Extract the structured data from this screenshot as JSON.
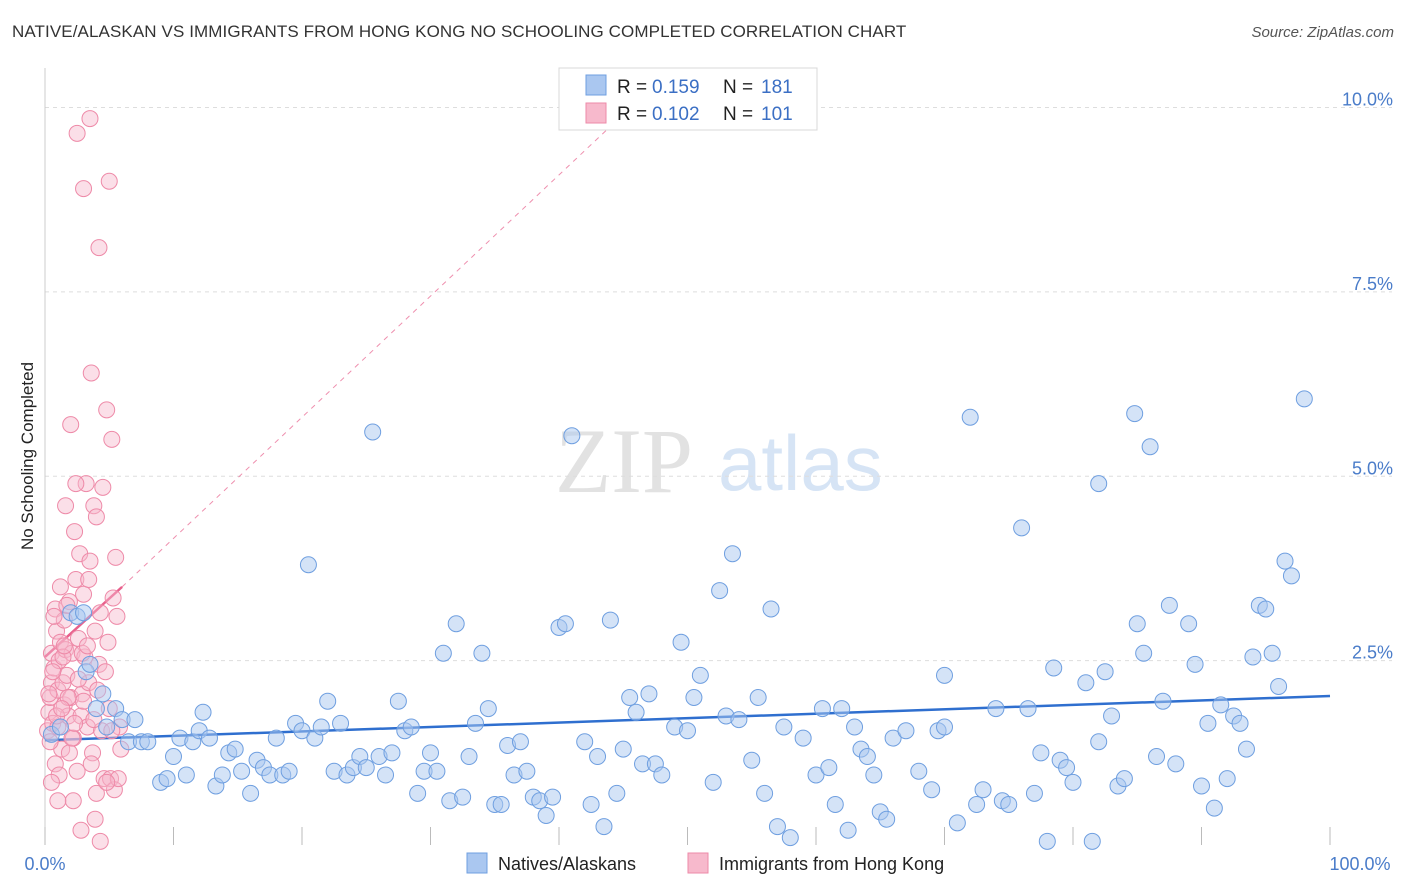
{
  "header": {
    "title": "NATIVE/ALASKAN VS IMMIGRANTS FROM HONG KONG NO SCHOOLING COMPLETED CORRELATION CHART",
    "source": "Source: ZipAtlas.com"
  },
  "watermark": {
    "zip": "ZIP",
    "atlas": "atlas"
  },
  "legend": {
    "rows": [
      {
        "r_label": "R = ",
        "r_value": "0.159",
        "n_label": "N = ",
        "n_value": "181"
      },
      {
        "r_label": "R = ",
        "r_value": "0.102",
        "n_label": "N = ",
        "n_value": "101"
      }
    ]
  },
  "colors": {
    "blue_fill": "#aac7f0",
    "blue_stroke": "#6f9fe0",
    "blue_line": "#2f6fcf",
    "pink_fill": "#f7b9cc",
    "pink_stroke": "#ee8aa8",
    "pink_line": "#e8608c",
    "grid": "#dddddd",
    "tick_text": "#4a7cc9"
  },
  "chart_data": {
    "type": "scatter",
    "title": "NATIVE/ALASKAN VS IMMIGRANTS FROM HONG KONG NO SCHOOLING COMPLETED CORRELATION CHART",
    "xlabel": "",
    "ylabel": "No Schooling Completed",
    "xlim": [
      0,
      100
    ],
    "ylim": [
      0,
      10.4
    ],
    "x_tick_labels": [
      "0.0%",
      "100.0%"
    ],
    "y_ticks": [
      2.5,
      5.0,
      7.5,
      10.0
    ],
    "y_tick_labels": [
      "2.5%",
      "5.0%",
      "7.5%",
      "10.0%"
    ],
    "grid": true,
    "legend_position": "top-center",
    "series": [
      {
        "name": "Natives/Alaskans",
        "color": "blue",
        "r": 0.159,
        "n": 181,
        "trend": {
          "x0": 0,
          "y0": 1.42,
          "x1": 100,
          "y1": 2.02,
          "style": "solid"
        },
        "points": [
          [
            0.5,
            1.5
          ],
          [
            1.2,
            1.6
          ],
          [
            2.0,
            3.15
          ],
          [
            2.5,
            3.1
          ],
          [
            3.0,
            3.15
          ],
          [
            3.2,
            2.35
          ],
          [
            3.5,
            2.45
          ],
          [
            4.0,
            1.85
          ],
          [
            4.5,
            2.05
          ],
          [
            4.8,
            1.6
          ],
          [
            5.5,
            1.85
          ],
          [
            6.0,
            1.7
          ],
          [
            6.5,
            1.4
          ],
          [
            7.0,
            1.7
          ],
          [
            7.5,
            1.4
          ],
          [
            8.0,
            1.4
          ],
          [
            9.0,
            0.85
          ],
          [
            9.5,
            0.9
          ],
          [
            10.0,
            1.2
          ],
          [
            10.5,
            1.45
          ],
          [
            11.0,
            0.95
          ],
          [
            11.5,
            1.4
          ],
          [
            12.0,
            1.55
          ],
          [
            12.3,
            1.8
          ],
          [
            12.8,
            1.45
          ],
          [
            13.3,
            0.8
          ],
          [
            13.8,
            0.95
          ],
          [
            14.3,
            1.25
          ],
          [
            14.8,
            1.3
          ],
          [
            15.3,
            1.0
          ],
          [
            16.0,
            0.7
          ],
          [
            16.5,
            1.15
          ],
          [
            17.0,
            1.05
          ],
          [
            17.5,
            0.95
          ],
          [
            18.0,
            1.45
          ],
          [
            18.5,
            0.95
          ],
          [
            19.0,
            1.0
          ],
          [
            19.5,
            1.65
          ],
          [
            20.0,
            1.55
          ],
          [
            20.5,
            3.8
          ],
          [
            21.0,
            1.45
          ],
          [
            21.5,
            1.6
          ],
          [
            22.0,
            1.95
          ],
          [
            22.5,
            1.0
          ],
          [
            23.0,
            1.65
          ],
          [
            23.5,
            0.95
          ],
          [
            24.0,
            1.05
          ],
          [
            24.5,
            1.2
          ],
          [
            25.0,
            1.05
          ],
          [
            25.5,
            5.6
          ],
          [
            26.0,
            1.2
          ],
          [
            26.5,
            0.95
          ],
          [
            27.0,
            1.25
          ],
          [
            27.5,
            1.95
          ],
          [
            28.0,
            1.55
          ],
          [
            28.5,
            1.6
          ],
          [
            29.0,
            0.7
          ],
          [
            29.5,
            1.0
          ],
          [
            30.0,
            1.25
          ],
          [
            30.5,
            1.0
          ],
          [
            31.0,
            2.6
          ],
          [
            31.5,
            0.6
          ],
          [
            32.0,
            3.0
          ],
          [
            32.5,
            0.65
          ],
          [
            33.0,
            1.2
          ],
          [
            33.5,
            1.65
          ],
          [
            34.0,
            2.6
          ],
          [
            34.5,
            1.85
          ],
          [
            35.0,
            0.55
          ],
          [
            35.5,
            0.55
          ],
          [
            36.0,
            1.35
          ],
          [
            36.5,
            0.95
          ],
          [
            37.0,
            1.4
          ],
          [
            37.5,
            1.0
          ],
          [
            38.0,
            0.65
          ],
          [
            38.5,
            0.6
          ],
          [
            39.0,
            0.4
          ],
          [
            39.5,
            0.65
          ],
          [
            40.0,
            2.95
          ],
          [
            40.5,
            3.0
          ],
          [
            41.0,
            5.55
          ],
          [
            42.0,
            1.4
          ],
          [
            42.5,
            0.55
          ],
          [
            43.0,
            1.2
          ],
          [
            43.5,
            0.25
          ],
          [
            44.0,
            3.05
          ],
          [
            44.5,
            0.7
          ],
          [
            45.0,
            1.3
          ],
          [
            45.5,
            2.0
          ],
          [
            46.0,
            1.8
          ],
          [
            46.5,
            1.1
          ],
          [
            47.0,
            2.05
          ],
          [
            47.5,
            1.1
          ],
          [
            48.0,
            0.95
          ],
          [
            49.0,
            1.6
          ],
          [
            49.5,
            2.75
          ],
          [
            50.0,
            1.55
          ],
          [
            50.5,
            2.0
          ],
          [
            51.0,
            2.3
          ],
          [
            52.0,
            0.85
          ],
          [
            52.5,
            3.45
          ],
          [
            53.0,
            1.75
          ],
          [
            53.5,
            3.95
          ],
          [
            54.0,
            1.7
          ],
          [
            55.0,
            1.15
          ],
          [
            56.0,
            0.7
          ],
          [
            56.5,
            3.2
          ],
          [
            57.0,
            0.25
          ],
          [
            57.5,
            1.6
          ],
          [
            58.0,
            0.1
          ],
          [
            59.0,
            1.45
          ],
          [
            60.0,
            0.95
          ],
          [
            60.5,
            1.85
          ],
          [
            61.0,
            1.05
          ],
          [
            61.5,
            0.55
          ],
          [
            62.0,
            1.85
          ],
          [
            62.5,
            0.2
          ],
          [
            63.0,
            1.6
          ],
          [
            63.5,
            1.3
          ],
          [
            64.0,
            1.2
          ],
          [
            64.5,
            0.95
          ],
          [
            65.0,
            0.45
          ],
          [
            65.5,
            0.35
          ],
          [
            66.0,
            1.45
          ],
          [
            67.0,
            1.55
          ],
          [
            68.0,
            1.0
          ],
          [
            69.0,
            0.75
          ],
          [
            69.5,
            1.55
          ],
          [
            70.0,
            2.3
          ],
          [
            71.0,
            0.3
          ],
          [
            72.0,
            5.8
          ],
          [
            72.5,
            0.55
          ],
          [
            73.0,
            0.75
          ],
          [
            74.0,
            1.85
          ],
          [
            74.5,
            0.6
          ],
          [
            75.0,
            0.55
          ],
          [
            76.0,
            4.3
          ],
          [
            76.5,
            1.85
          ],
          [
            77.0,
            0.7
          ],
          [
            77.5,
            1.25
          ],
          [
            78.0,
            0.05
          ],
          [
            78.5,
            2.4
          ],
          [
            79.0,
            1.15
          ],
          [
            79.5,
            1.05
          ],
          [
            80.0,
            0.85
          ],
          [
            81.0,
            2.2
          ],
          [
            81.5,
            0.05
          ],
          [
            82.0,
            1.4
          ],
          [
            82.5,
            2.35
          ],
          [
            83.0,
            1.75
          ],
          [
            83.5,
            0.8
          ],
          [
            84.0,
            0.9
          ],
          [
            85.0,
            3.0
          ],
          [
            85.5,
            2.6
          ],
          [
            86.0,
            5.4
          ],
          [
            86.5,
            1.2
          ],
          [
            87.0,
            1.95
          ],
          [
            87.5,
            3.25
          ],
          [
            88.0,
            1.1
          ],
          [
            89.0,
            3.0
          ],
          [
            89.5,
            2.45
          ],
          [
            90.0,
            0.8
          ],
          [
            90.5,
            1.65
          ],
          [
            91.0,
            0.5
          ],
          [
            91.5,
            1.9
          ],
          [
            92.0,
            0.9
          ],
          [
            92.5,
            1.75
          ],
          [
            93.0,
            1.65
          ],
          [
            93.5,
            1.3
          ],
          [
            94.0,
            2.55
          ],
          [
            94.5,
            3.25
          ],
          [
            95.0,
            3.2
          ],
          [
            95.5,
            2.6
          ],
          [
            96.0,
            2.15
          ],
          [
            96.5,
            3.85
          ],
          [
            97.0,
            3.65
          ],
          [
            98.0,
            6.05
          ],
          [
            84.8,
            5.85
          ],
          [
            82.0,
            4.9
          ],
          [
            70.0,
            1.6
          ],
          [
            55.5,
            2.0
          ]
        ]
      },
      {
        "name": "Immigrants from Hong Kong",
        "color": "pink",
        "r": 0.102,
        "n": 101,
        "trend": {
          "x0": 0,
          "y0": 2.55,
          "x1": 6.0,
          "y1": 3.5,
          "x1_dash": 48,
          "y1_dash": 10.4,
          "style": "solid+dashed"
        },
        "points": [
          [
            0.2,
            1.55
          ],
          [
            0.3,
            1.8
          ],
          [
            0.4,
            2.0
          ],
          [
            0.5,
            2.2
          ],
          [
            0.5,
            2.6
          ],
          [
            0.6,
            1.65
          ],
          [
            0.7,
            2.4
          ],
          [
            0.8,
            1.1
          ],
          [
            0.8,
            3.2
          ],
          [
            0.9,
            2.9
          ],
          [
            1.0,
            2.1
          ],
          [
            1.0,
            1.6
          ],
          [
            1.1,
            2.5
          ],
          [
            1.2,
            2.75
          ],
          [
            1.3,
            1.3
          ],
          [
            1.4,
            2.2
          ],
          [
            1.5,
            3.05
          ],
          [
            1.5,
            1.9
          ],
          [
            1.6,
            2.65
          ],
          [
            1.7,
            2.3
          ],
          [
            1.8,
            1.75
          ],
          [
            1.9,
            3.3
          ],
          [
            2.0,
            5.7
          ],
          [
            2.0,
            2.0
          ],
          [
            2.1,
            2.6
          ],
          [
            2.2,
            1.45
          ],
          [
            2.3,
            4.25
          ],
          [
            2.4,
            3.6
          ],
          [
            2.5,
            1.0
          ],
          [
            2.6,
            2.8
          ],
          [
            2.7,
            3.95
          ],
          [
            2.8,
            1.75
          ],
          [
            2.9,
            2.05
          ],
          [
            3.0,
            8.9
          ],
          [
            3.0,
            3.4
          ],
          [
            3.1,
            2.55
          ],
          [
            3.2,
            4.9
          ],
          [
            3.3,
            1.6
          ],
          [
            3.4,
            2.2
          ],
          [
            3.5,
            3.85
          ],
          [
            3.6,
            6.4
          ],
          [
            3.7,
            1.25
          ],
          [
            3.8,
            4.6
          ],
          [
            3.9,
            2.9
          ],
          [
            4.0,
            4.45
          ],
          [
            4.0,
            0.7
          ],
          [
            4.1,
            2.1
          ],
          [
            4.2,
            2.45
          ],
          [
            4.3,
            3.15
          ],
          [
            4.4,
            1.55
          ],
          [
            4.5,
            4.85
          ],
          [
            4.6,
            0.9
          ],
          [
            4.7,
            2.35
          ],
          [
            4.8,
            5.9
          ],
          [
            4.9,
            2.75
          ],
          [
            5.0,
            1.85
          ],
          [
            5.1,
            0.9
          ],
          [
            5.2,
            5.5
          ],
          [
            5.3,
            3.35
          ],
          [
            5.4,
            0.75
          ],
          [
            5.5,
            3.9
          ],
          [
            5.6,
            3.1
          ],
          [
            5.7,
            0.9
          ],
          [
            5.8,
            1.6
          ],
          [
            5.9,
            1.3
          ],
          [
            2.5,
            9.65
          ],
          [
            3.5,
            9.85
          ],
          [
            4.2,
            8.1
          ],
          [
            5.0,
            9.0
          ],
          [
            1.2,
            3.5
          ],
          [
            1.6,
            4.6
          ],
          [
            2.4,
            4.9
          ],
          [
            1.8,
            2.0
          ],
          [
            2.6,
            2.25
          ],
          [
            3.4,
            3.6
          ],
          [
            3.0,
            1.95
          ],
          [
            0.6,
            2.35
          ],
          [
            0.9,
            1.75
          ],
          [
            1.4,
            2.55
          ],
          [
            0.4,
            1.4
          ],
          [
            2.2,
            0.6
          ],
          [
            4.3,
            0.05
          ],
          [
            1.1,
            0.95
          ],
          [
            2.8,
            0.2
          ],
          [
            1.5,
            2.7
          ],
          [
            3.6,
            1.1
          ],
          [
            0.7,
            3.1
          ],
          [
            1.9,
            1.25
          ],
          [
            2.9,
            2.6
          ],
          [
            3.3,
            2.7
          ],
          [
            1.3,
            1.85
          ],
          [
            0.3,
            2.05
          ],
          [
            2.1,
            1.45
          ],
          [
            3.8,
            1.7
          ],
          [
            4.8,
            0.85
          ],
          [
            5.2,
            1.55
          ],
          [
            1.7,
            3.25
          ],
          [
            2.3,
            1.65
          ],
          [
            0.5,
            0.85
          ],
          [
            1.0,
            0.6
          ],
          [
            3.9,
            0.35
          ]
        ]
      }
    ]
  },
  "bottom_legend": {
    "items": [
      {
        "label": "Natives/Alaskans",
        "color": "blue"
      },
      {
        "label": "Immigrants from Hong Kong",
        "color": "pink"
      }
    ]
  }
}
